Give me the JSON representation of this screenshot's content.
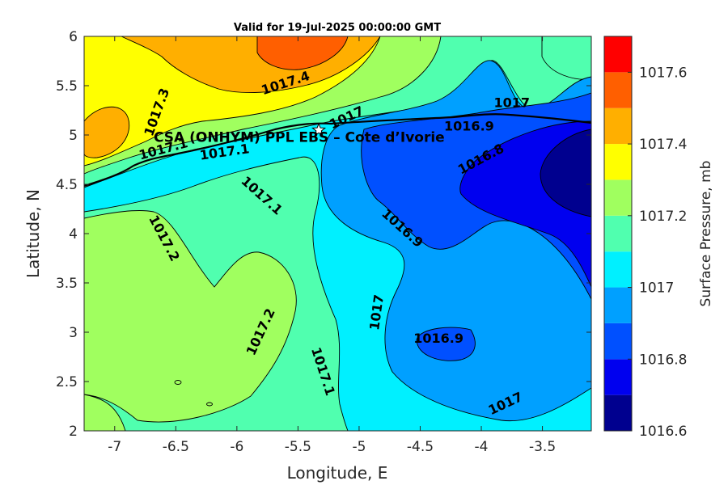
{
  "chart_data": {
    "type": "contour",
    "title": "Valid for 19-Jul-2025 00:00:00 GMT",
    "xlabel": "Longitude, E",
    "ylabel": "Latitude, N",
    "xlim": [
      -7.25,
      -3.1
    ],
    "ylim": [
      2,
      6
    ],
    "x_ticks": [
      -7,
      -6.5,
      -6,
      -5.5,
      -5,
      -4.5,
      -4,
      -3.5
    ],
    "x_tick_labels": [
      "-7",
      "-6.5",
      "-6",
      "-5.5",
      "-5",
      "-4.5",
      "-4",
      "-3.5"
    ],
    "y_ticks": [
      2,
      2.5,
      3,
      3.5,
      4,
      4.5,
      5,
      5.5,
      6
    ],
    "y_tick_labels": [
      "2",
      "2.5",
      "3",
      "3.5",
      "4",
      "4.5",
      "5",
      "5.5",
      "6"
    ],
    "colorbar": {
      "label": "Surface Pressure, mb",
      "levels": [
        1016.6,
        1016.65,
        1016.7,
        1016.75,
        1016.8,
        1016.85,
        1016.9,
        1016.95,
        1017.0,
        1017.05,
        1017.1,
        1017.15,
        1017.2,
        1017.25,
        1017.3,
        1017.35,
        1017.4,
        1017.45,
        1017.5,
        1017.55,
        1017.6,
        1017.65,
        1017.7
      ],
      "colors": [
        "#00008f",
        "#0000ef",
        "#0050ff",
        "#00a0ff",
        "#00f0ff",
        "#50ffaf",
        "#a0ff5f",
        "#ffff00",
        "#ffaf00",
        "#ff5f00",
        "#ff0000",
        "#af0000"
      ],
      "tick_values": [
        1016.6,
        1016.8,
        1017,
        1017.2,
        1017.4,
        1017.6
      ],
      "tick_labels": [
        "1016.6",
        "1016.8",
        "1017",
        "1017.2",
        "1017.4",
        "1017.6"
      ]
    },
    "contour_labels": [
      {
        "text": "1017.4",
        "lon": -5.6,
        "lat": 5.52,
        "angle": -18
      },
      {
        "text": "1017.3",
        "lon": -6.65,
        "lat": 5.23,
        "angle": -70
      },
      {
        "text": "1017",
        "lon": -5.1,
        "lat": 5.17,
        "angle": -25
      },
      {
        "text": "1017",
        "lon": -3.75,
        "lat": 5.32,
        "angle": 0
      },
      {
        "text": "1016.9",
        "lon": -4.1,
        "lat": 5.08,
        "angle": 0
      },
      {
        "text": "1016.8",
        "lon": -4.0,
        "lat": 4.75,
        "angle": -28
      },
      {
        "text": "1017.1",
        "lon": -6.6,
        "lat": 4.85,
        "angle": -15
      },
      {
        "text": "1017.1",
        "lon": -6.1,
        "lat": 4.82,
        "angle": -8
      },
      {
        "text": "1017.1",
        "lon": -5.8,
        "lat": 4.38,
        "angle": 42
      },
      {
        "text": "1016.9",
        "lon": -4.65,
        "lat": 4.05,
        "angle": 42
      },
      {
        "text": "1017.2",
        "lon": -6.6,
        "lat": 3.95,
        "angle": 62
      },
      {
        "text": "1017",
        "lon": -4.85,
        "lat": 3.2,
        "angle": -82
      },
      {
        "text": "1016.9",
        "lon": -4.35,
        "lat": 2.93,
        "angle": 0
      },
      {
        "text": "1017.2",
        "lon": -5.8,
        "lat": 3.0,
        "angle": -65
      },
      {
        "text": "1017.1",
        "lon": -5.3,
        "lat": 2.6,
        "angle": 72
      },
      {
        "text": "1017",
        "lon": -3.8,
        "lat": 2.27,
        "angle": -25
      }
    ],
    "site": {
      "label": "CSA (ONHYM) PPL EBS  – Cote d’Ivorie",
      "lon": -5.33,
      "lat": 5.05
    }
  }
}
